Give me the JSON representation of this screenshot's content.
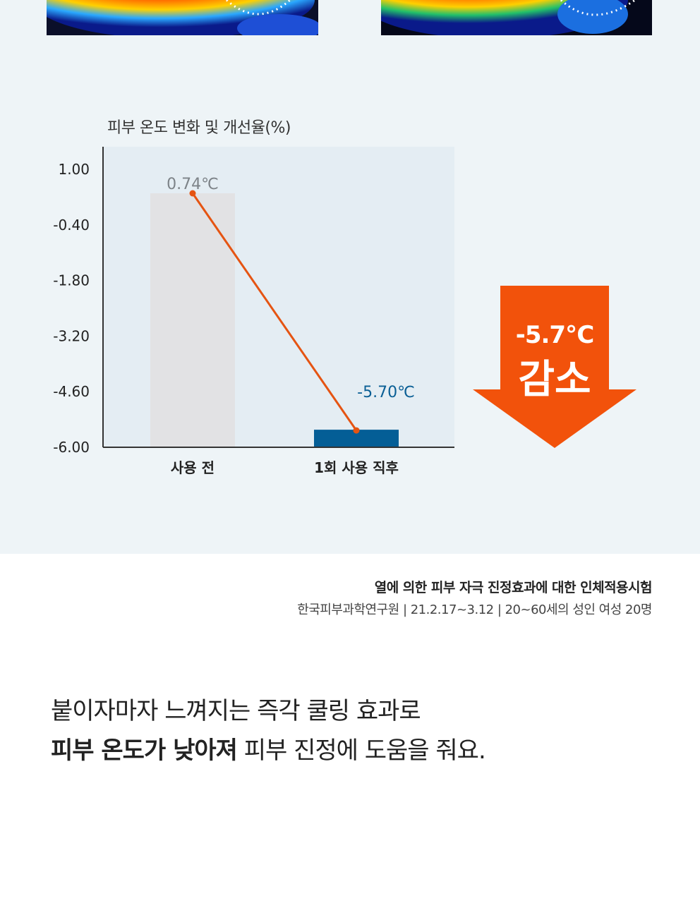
{
  "chart_data": {
    "type": "bar",
    "title": "피부 온도 변화 및 개선율(%)",
    "categories": [
      "사용 전",
      "1회 사용 직후"
    ],
    "values": [
      0.74,
      -5.7
    ],
    "value_labels": [
      "0.74℃",
      "-5.70℃"
    ],
    "bar_colors": [
      "#e2e2e4",
      "#045e96"
    ],
    "line_color": "#e55412",
    "y_ticks": [
      "1.00",
      "-0.40",
      "-1.80",
      "-3.20",
      "-4.60",
      "-6.00"
    ],
    "ylim": [
      -6.0,
      1.0
    ],
    "grid": false,
    "legend": "none"
  },
  "badge": {
    "value": "-5.7℃",
    "word": "감소",
    "color": "#f2520b"
  },
  "study": {
    "title": "열에 의한 피부 자극 진정효과에 대한 인체적용시험",
    "meta": "한국피부과학연구원 | 21.2.17~3.12 | 20~60세의 성인 여성 20명"
  },
  "headline": {
    "line1": "붙이자마자 느껴지는 즉각 쿨링 효과로",
    "line2_bold": "피부 온도가 낮아져",
    "line2_rest": " 피부 진정에 도움을 줘요."
  }
}
